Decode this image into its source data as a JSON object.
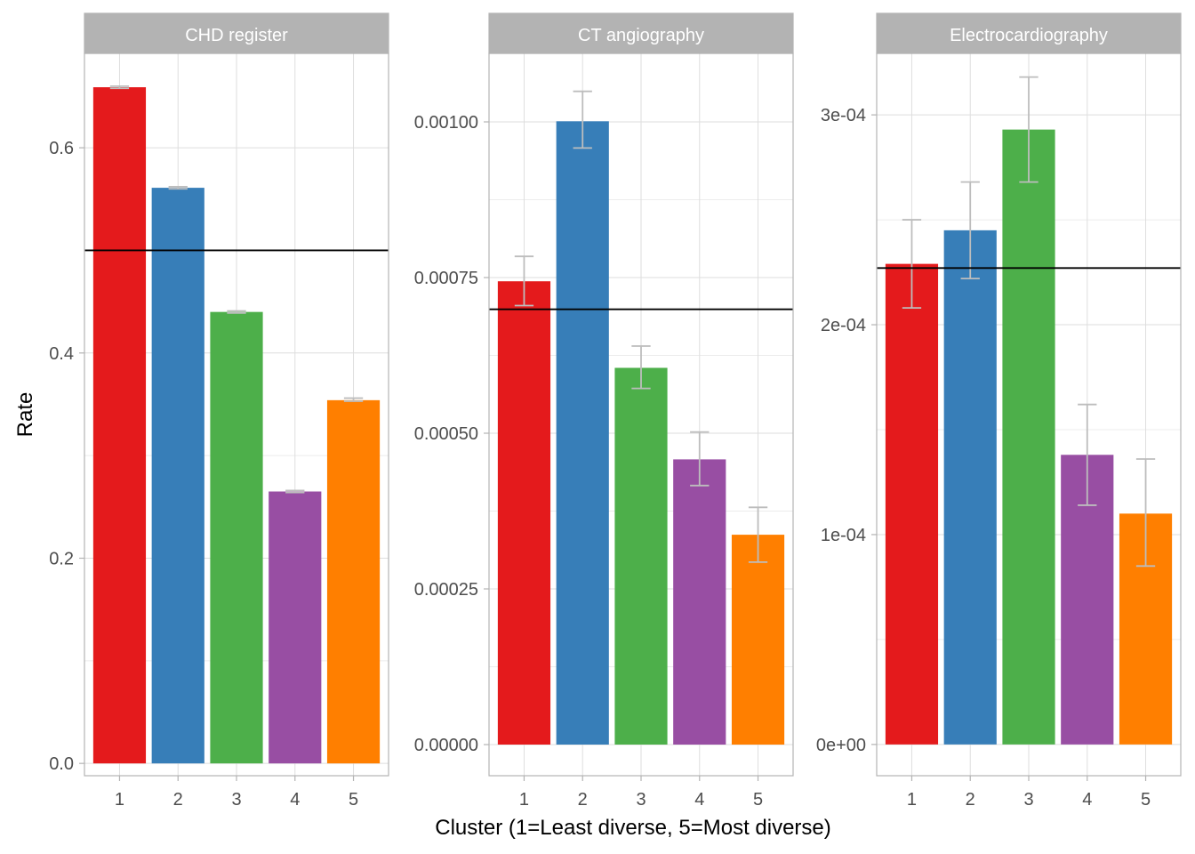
{
  "chart_data": {
    "type": "bar",
    "ylabel": "Rate",
    "xlabel": "Cluster (1=Least diverse, 5=Most diverse)",
    "categories": [
      "1",
      "2",
      "3",
      "4",
      "5"
    ],
    "colors": [
      "#e41a1c",
      "#377eb8",
      "#4daf4a",
      "#984ea3",
      "#ff7f00"
    ],
    "error_bar_color": "#bdbdbd",
    "reference_line_color": "#000000",
    "strip_color": "#b3b3b3",
    "grid": true,
    "facets": [
      {
        "title": "CHD register",
        "ylim": [
          -0.012,
          0.692
        ],
        "yticks": [
          0.0,
          0.2,
          0.4,
          0.6
        ],
        "ytick_labels": [
          "0.0",
          "0.2",
          "0.4",
          "0.6"
        ],
        "values": [
          0.659,
          0.561,
          0.44,
          0.265,
          0.354
        ],
        "err_low": [
          0.658,
          0.56,
          0.439,
          0.264,
          0.353
        ],
        "err_high": [
          0.66,
          0.562,
          0.441,
          0.266,
          0.356
        ],
        "reference": 0.5
      },
      {
        "title": "CT angiography",
        "ylim": [
          -5e-05,
          0.00111
        ],
        "yticks": [
          0.0,
          0.00025,
          0.0005,
          0.00075,
          0.001
        ],
        "ytick_labels": [
          "0.00000",
          "0.00025",
          "0.00050",
          "0.00075",
          "0.00100"
        ],
        "values": [
          0.000744,
          0.001001,
          0.000605,
          0.000458,
          0.000337
        ],
        "err_low": [
          0.000705,
          0.000958,
          0.000572,
          0.000416,
          0.000293
        ],
        "err_high": [
          0.000784,
          0.001049,
          0.00064,
          0.000502,
          0.000381
        ],
        "reference": 0.000699
      },
      {
        "title": "Electrocardiography",
        "ylim": [
          -1.49e-05,
          0.0003293
        ],
        "yticks": [
          0.0,
          0.0001,
          0.0002,
          0.0003
        ],
        "ytick_labels": [
          "0e+00",
          "1e-04",
          "2e-04",
          "3e-04"
        ],
        "values": [
          0.000229,
          0.000245,
          0.000293,
          0.000138,
          0.00011
        ],
        "err_low": [
          0.000208,
          0.000222,
          0.000268,
          0.000114,
          8.5e-05
        ],
        "err_high": [
          0.00025,
          0.000268,
          0.000318,
          0.000162,
          0.000136
        ],
        "reference": 0.000227
      }
    ]
  }
}
